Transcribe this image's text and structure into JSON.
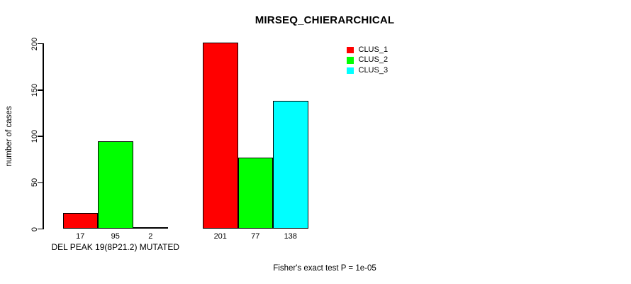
{
  "chart_data": {
    "type": "bar",
    "title": "MIRSEQ_CHIERARCHICAL",
    "ylabel": "number of cases",
    "xlabel": "",
    "ylim": [
      0,
      200
    ],
    "yticks": [
      0,
      50,
      100,
      150,
      200
    ],
    "grid": false,
    "legend_position": "top-right-inside",
    "series": [
      "CLUS_1",
      "CLUS_2",
      "CLUS_3"
    ],
    "colors": [
      "#FF0000",
      "#00FF00",
      "#00FFFF"
    ],
    "groups": [
      {
        "label": "DEL PEAK 19(8P21.2) MUTATED",
        "values": [
          17,
          95,
          2
        ]
      },
      {
        "label": "",
        "values": [
          201,
          77,
          138
        ]
      }
    ],
    "bar_value_labels": [
      [
        "17",
        "95",
        "2"
      ],
      [
        "201",
        "77",
        "138"
      ]
    ],
    "annotation": "Fisher's exact test P = 1e-05"
  }
}
